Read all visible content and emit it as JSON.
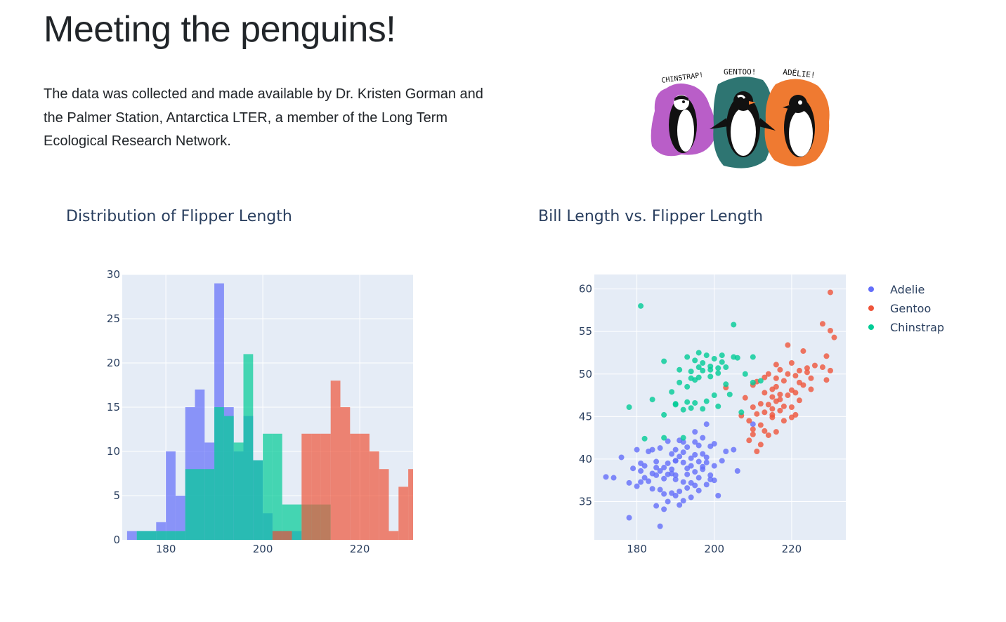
{
  "header": {
    "title": "Meeting the penguins!",
    "intro": "The data was collected and made available by Dr. Kristen Gorman and the Palmer Station, Antarctica LTER, a member of the Long Term Ecological Research Network."
  },
  "illustration": {
    "labels": [
      "CHINSTRAP!",
      "GENTOO!",
      "ADÉLIE!"
    ],
    "colors": {
      "chinstrap": "#b95ec8",
      "gentoo": "#2e7572",
      "adelie": "#ef7a31"
    }
  },
  "colors": {
    "Adelie": "#636efa",
    "Gentoo": "#ef553b",
    "Chinstrap": "#00cc96",
    "plot_bg": "#e5ecf6",
    "grid": "#ffffff",
    "text": "#2a3f5f"
  },
  "chart_data": [
    {
      "type": "bar",
      "title": "Distribution of Flipper Length",
      "xlabel": "",
      "ylabel": "",
      "bin_size": 2,
      "xlim": [
        171,
        231
      ],
      "ylim": [
        0,
        30
      ],
      "xticks": [
        180,
        200,
        220
      ],
      "yticks": [
        0,
        5,
        10,
        15,
        20,
        25,
        30
      ],
      "grid": true,
      "legend": "none",
      "series": [
        {
          "name": "Adelie",
          "bin_starts": [
            172,
            174,
            176,
            178,
            180,
            182,
            184,
            186,
            188,
            190,
            192,
            194,
            196,
            198,
            200,
            202,
            204,
            206,
            208,
            210
          ],
          "values": [
            1,
            1,
            1,
            2,
            10,
            5,
            15,
            17,
            11,
            29,
            15,
            10,
            14,
            9,
            3,
            1,
            1,
            1,
            0,
            0
          ]
        },
        {
          "name": "Chinstrap",
          "bin_starts": [
            174,
            176,
            178,
            180,
            182,
            184,
            186,
            188,
            190,
            192,
            194,
            196,
            198,
            200,
            202,
            204,
            206,
            208,
            210,
            212
          ],
          "values": [
            1,
            1,
            1,
            1,
            1,
            8,
            8,
            8,
            15,
            14,
            11,
            21,
            9,
            12,
            12,
            4,
            4,
            4,
            4,
            4
          ]
        },
        {
          "name": "Gentoo",
          "bin_starts": [
            202,
            204,
            206,
            208,
            210,
            212,
            214,
            216,
            218,
            220,
            222,
            224,
            226,
            228,
            230
          ],
          "values": [
            1,
            1,
            0,
            12,
            12,
            12,
            18,
            15,
            12,
            12,
            10,
            8,
            1,
            6,
            8
          ]
        }
      ]
    },
    {
      "type": "scatter",
      "title": "Bill Length vs. Flipper Length",
      "xlabel": "",
      "ylabel": "",
      "xlim": [
        169,
        234
      ],
      "ylim": [
        30.5,
        61.7
      ],
      "xticks": [
        180,
        200,
        220
      ],
      "yticks": [
        35,
        40,
        45,
        50,
        55,
        60
      ],
      "grid": true,
      "legend": "top-right",
      "series": [
        {
          "name": "Adelie",
          "points": [
            [
              172,
              37.9
            ],
            [
              174,
              37.8
            ],
            [
              176,
              40.2
            ],
            [
              178,
              33.1
            ],
            [
              178,
              37.2
            ],
            [
              180,
              41.1
            ],
            [
              180,
              36.8
            ],
            [
              181,
              39.5
            ],
            [
              181,
              38.6
            ],
            [
              182,
              37.8
            ],
            [
              182,
              39.2
            ],
            [
              183,
              40.9
            ],
            [
              184,
              36.5
            ],
            [
              184,
              41.1
            ],
            [
              185,
              38.1
            ],
            [
              185,
              39.7
            ],
            [
              185,
              34.5
            ],
            [
              186,
              38.6
            ],
            [
              186,
              36.4
            ],
            [
              186,
              41.3
            ],
            [
              187,
              39.0
            ],
            [
              187,
              35.9
            ],
            [
              187,
              37.7
            ],
            [
              188,
              38.2
            ],
            [
              188,
              42.1
            ],
            [
              188,
              39.5
            ],
            [
              189,
              36.0
            ],
            [
              189,
              40.6
            ],
            [
              189,
              38.8
            ],
            [
              190,
              35.7
            ],
            [
              190,
              37.6
            ],
            [
              190,
              41.1
            ],
            [
              190,
              39.8
            ],
            [
              190,
              38.1
            ],
            [
              191,
              36.2
            ],
            [
              191,
              40.3
            ],
            [
              191,
              42.2
            ],
            [
              192,
              39.6
            ],
            [
              192,
              37.3
            ],
            [
              192,
              40.8
            ],
            [
              193,
              38.9
            ],
            [
              193,
              36.6
            ],
            [
              193,
              41.4
            ],
            [
              194,
              39.2
            ],
            [
              194,
              35.5
            ],
            [
              194,
              40.1
            ],
            [
              195,
              38.5
            ],
            [
              195,
              42.0
            ],
            [
              195,
              36.9
            ],
            [
              196,
              39.7
            ],
            [
              196,
              41.6
            ],
            [
              196,
              37.8
            ],
            [
              197,
              42.5
            ],
            [
              197,
              38.8
            ],
            [
              197,
              40.6
            ],
            [
              198,
              37.0
            ],
            [
              198,
              44.1
            ],
            [
              198,
              39.6
            ],
            [
              199,
              41.5
            ],
            [
              199,
              38.1
            ],
            [
              200,
              39.2
            ],
            [
              200,
              41.8
            ],
            [
              201,
              35.7
            ],
            [
              203,
              40.9
            ],
            [
              205,
              41.1
            ],
            [
              206,
              38.6
            ],
            [
              210,
              44.1
            ],
            [
              199,
              37.6
            ],
            [
              187,
              34.1
            ],
            [
              192,
              35.1
            ],
            [
              181,
              37.3
            ],
            [
              190,
              39.8
            ],
            [
              193,
              38.2
            ],
            [
              195,
              40.5
            ],
            [
              198,
              40.2
            ],
            [
              185,
              39.0
            ],
            [
              189,
              38.3
            ],
            [
              186,
              32.1
            ],
            [
              188,
              35.0
            ],
            [
              191,
              34.6
            ],
            [
              194,
              37.2
            ],
            [
              196,
              36.3
            ],
            [
              202,
              39.8
            ],
            [
              184,
              38.3
            ],
            [
              197,
              39.1
            ],
            [
              192,
              42.0
            ],
            [
              200,
              37.5
            ],
            [
              179,
              38.9
            ],
            [
              183,
              37.4
            ],
            [
              195,
              43.2
            ]
          ]
        },
        {
          "name": "Gentoo",
          "points": [
            [
              203,
              48.4
            ],
            [
              207,
              45.1
            ],
            [
              208,
              47.2
            ],
            [
              209,
              44.5
            ],
            [
              210,
              46.1
            ],
            [
              210,
              42.9
            ],
            [
              210,
              48.7
            ],
            [
              211,
              45.3
            ],
            [
              211,
              40.9
            ],
            [
              211,
              49.1
            ],
            [
              212,
              46.5
            ],
            [
              212,
              44.0
            ],
            [
              213,
              47.8
            ],
            [
              213,
              43.3
            ],
            [
              213,
              45.5
            ],
            [
              214,
              50.0
            ],
            [
              214,
              46.4
            ],
            [
              214,
              42.8
            ],
            [
              215,
              45.2
            ],
            [
              215,
              48.2
            ],
            [
              215,
              47.3
            ],
            [
              215,
              44.9
            ],
            [
              216,
              49.5
            ],
            [
              216,
              46.8
            ],
            [
              216,
              43.2
            ],
            [
              216,
              51.1
            ],
            [
              217,
              45.7
            ],
            [
              217,
              47.6
            ],
            [
              217,
              50.5
            ],
            [
              218,
              49.2
            ],
            [
              218,
              46.2
            ],
            [
              218,
              44.5
            ],
            [
              219,
              47.5
            ],
            [
              219,
              50.0
            ],
            [
              220,
              48.1
            ],
            [
              220,
              46.1
            ],
            [
              220,
              51.3
            ],
            [
              221,
              45.2
            ],
            [
              221,
              49.8
            ],
            [
              222,
              50.4
            ],
            [
              222,
              46.9
            ],
            [
              223,
              48.7
            ],
            [
              223,
              52.7
            ],
            [
              224,
              50.7
            ],
            [
              225,
              49.5
            ],
            [
              226,
              51.0
            ],
            [
              228,
              50.8
            ],
            [
              228,
              55.9
            ],
            [
              229,
              52.1
            ],
            [
              229,
              49.3
            ],
            [
              230,
              55.1
            ],
            [
              230,
              59.6
            ],
            [
              230,
              50.4
            ],
            [
              231,
              54.3
            ],
            [
              225,
              48.2
            ],
            [
              212,
              41.7
            ],
            [
              219,
              53.4
            ],
            [
              215,
              45.9
            ],
            [
              222,
              49.0
            ],
            [
              210,
              43.5
            ],
            [
              217,
              47.0
            ],
            [
              213,
              49.6
            ],
            [
              220,
              44.9
            ],
            [
              209,
              42.2
            ],
            [
              224,
              50.2
            ],
            [
              216,
              48.5
            ],
            [
              221,
              47.8
            ]
          ]
        },
        {
          "name": "Chinstrap",
          "points": [
            [
              178,
              46.1
            ],
            [
              181,
              58.0
            ],
            [
              182,
              42.4
            ],
            [
              187,
              51.5
            ],
            [
              187,
              45.2
            ],
            [
              187,
              42.5
            ],
            [
              190,
              46.5
            ],
            [
              190,
              46.4
            ],
            [
              191,
              49.0
            ],
            [
              191,
              50.5
            ],
            [
              192,
              45.8
            ],
            [
              193,
              46.7
            ],
            [
              193,
              52.0
            ],
            [
              193,
              48.5
            ],
            [
              194,
              46.0
            ],
            [
              194,
              50.3
            ],
            [
              195,
              51.6
            ],
            [
              195,
              49.3
            ],
            [
              195,
              46.6
            ],
            [
              196,
              50.8
            ],
            [
              196,
              52.5
            ],
            [
              196,
              49.6
            ],
            [
              197,
              51.3
            ],
            [
              197,
              50.4
            ],
            [
              198,
              52.2
            ],
            [
              198,
              46.8
            ],
            [
              199,
              49.7
            ],
            [
              199,
              50.5
            ],
            [
              200,
              51.8
            ],
            [
              200,
              47.5
            ],
            [
              201,
              50.7
            ],
            [
              201,
              46.2
            ],
            [
              202,
              51.4
            ],
            [
              202,
              52.2
            ],
            [
              203,
              50.8
            ],
            [
              203,
              48.8
            ],
            [
              205,
              55.8
            ],
            [
              205,
              52.0
            ],
            [
              206,
              51.9
            ],
            [
              207,
              45.5
            ],
            [
              208,
              50.0
            ],
            [
              210,
              49.0
            ],
            [
              210,
              52.0
            ],
            [
              212,
              49.2
            ],
            [
              192,
              42.5
            ],
            [
              184,
              47.0
            ],
            [
              197,
              45.9
            ],
            [
              189,
              47.9
            ],
            [
              201,
              50.1
            ],
            [
              204,
              47.6
            ],
            [
              194,
              49.5
            ],
            [
              199,
              50.9
            ]
          ]
        }
      ]
    }
  ]
}
